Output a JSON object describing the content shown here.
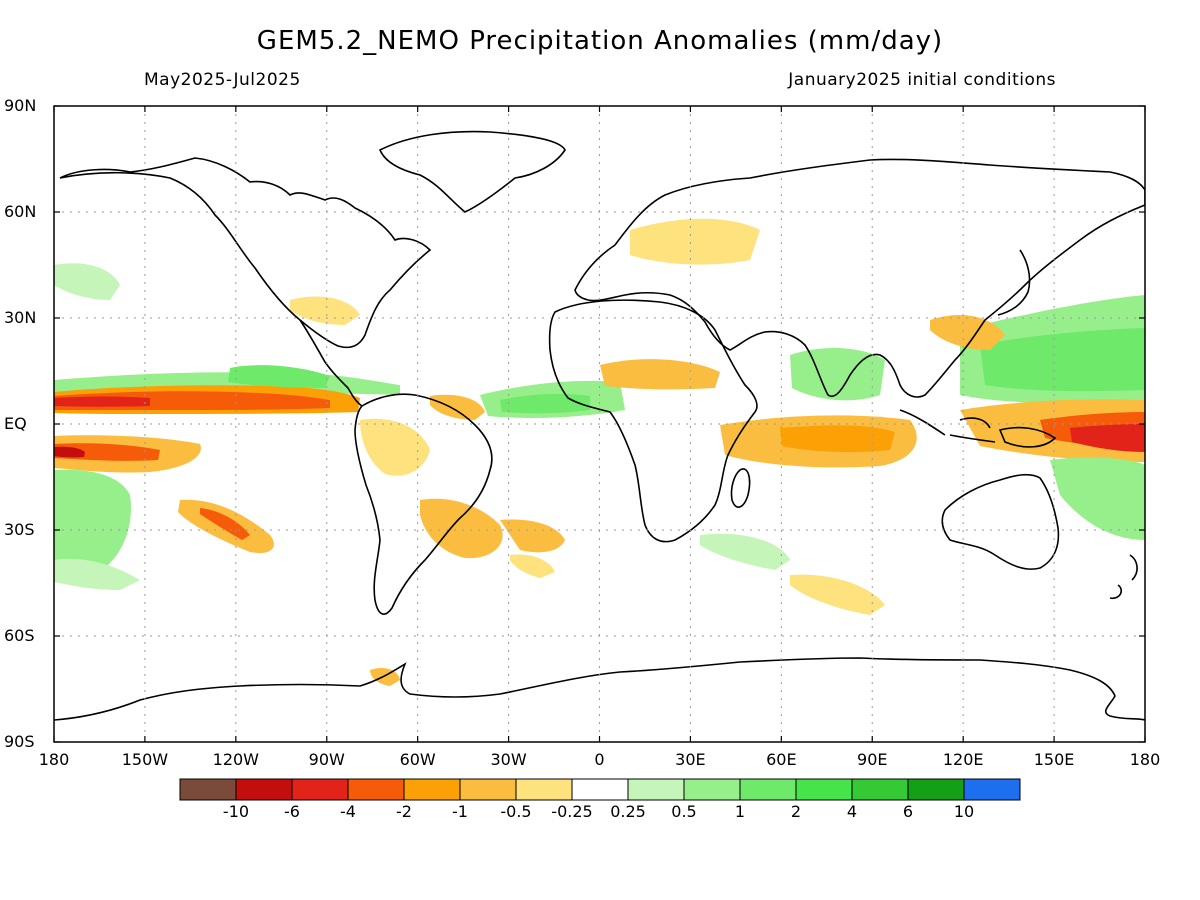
{
  "header": {
    "title": "GEM5.2_NEMO Precipitation Anomalies (mm/day)",
    "period": "May2025-Jul2025",
    "initial_conditions": "January2025 initial conditions"
  },
  "axes": {
    "lat_labels": [
      "90N",
      "60N",
      "30N",
      "EQ",
      "30S",
      "60S",
      "90S"
    ],
    "lon_labels": [
      "180",
      "150W",
      "120W",
      "90W",
      "60W",
      "30W",
      "0",
      "30E",
      "60E",
      "90E",
      "120E",
      "150E",
      "180"
    ]
  },
  "colorbar": {
    "colors": [
      "#7a4a3a",
      "#c40d0d",
      "#e2231a",
      "#f55b08",
      "#fba105",
      "#fbbd3f",
      "#fde27e",
      "#ffffff",
      "#c6f5b9",
      "#96ef8a",
      "#6ee96a",
      "#46e34a",
      "#34c935",
      "#13a016",
      "#1e6ff0"
    ],
    "labels": [
      "-10",
      "-6",
      "-4",
      "-2",
      "-1",
      "-0.5",
      "-0.25",
      "0.25",
      "0.5",
      "1",
      "2",
      "4",
      "6",
      "10"
    ]
  },
  "legend_colors": {
    "dry_strong": "#e2231a",
    "dry_moderate": "#f55b08",
    "dry_light": "#fba105",
    "dry_weak": "#fde27e",
    "wet_weak": "#c6f5b9",
    "wet_light": "#96ef8a",
    "wet_moderate": "#6ee96a",
    "wet_strong": "#46e34a"
  }
}
